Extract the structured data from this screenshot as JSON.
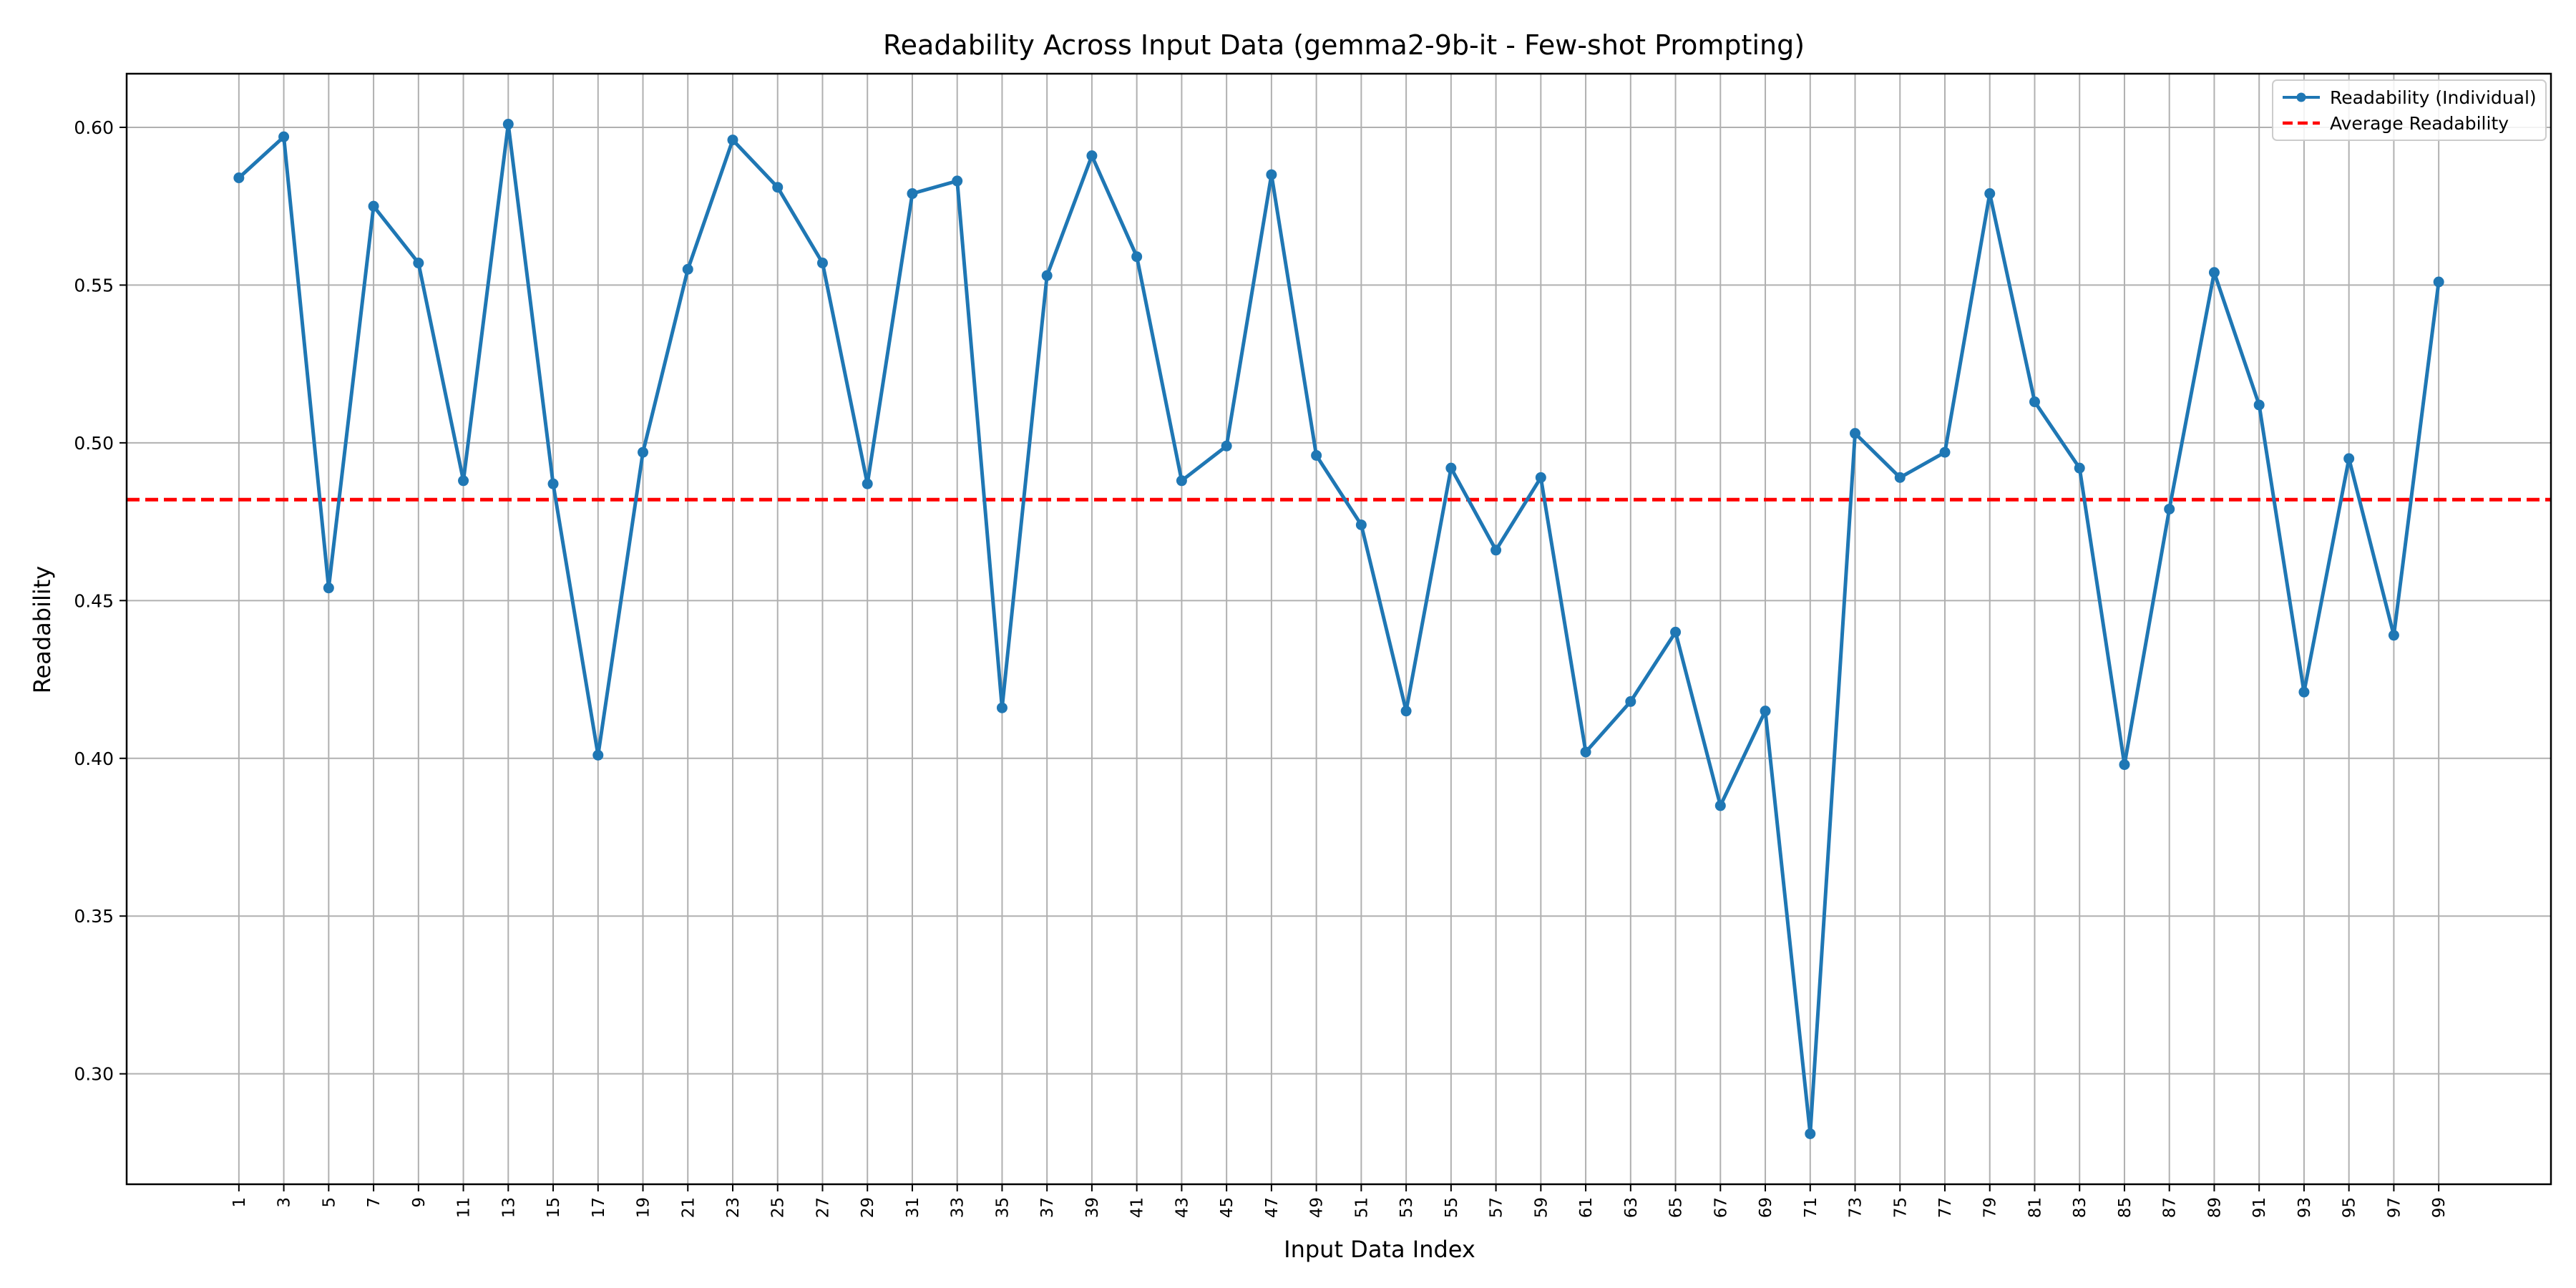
{
  "chart_data": {
    "type": "line",
    "title": "Readability Across Input Data (gemma2-9b-it - Few-shot Prompting)",
    "xlabel": "Input Data Index",
    "ylabel": "Readability",
    "x": [
      1,
      3,
      5,
      7,
      9,
      11,
      13,
      15,
      17,
      19,
      21,
      23,
      25,
      27,
      29,
      31,
      33,
      35,
      37,
      39,
      41,
      43,
      45,
      47,
      49,
      51,
      53,
      55,
      57,
      59,
      61,
      63,
      65,
      67,
      69,
      71,
      73,
      75,
      77,
      79,
      81,
      83,
      85,
      87,
      89,
      91,
      93,
      95,
      97,
      99
    ],
    "x_tick_labels": [
      "1",
      "3",
      "5",
      "7",
      "9",
      "11",
      "13",
      "15",
      "17",
      "19",
      "21",
      "23",
      "25",
      "27",
      "29",
      "31",
      "33",
      "35",
      "37",
      "39",
      "41",
      "43",
      "45",
      "47",
      "49",
      "51",
      "53",
      "55",
      "57",
      "59",
      "61",
      "63",
      "65",
      "67",
      "69",
      "71",
      "73",
      "75",
      "77",
      "79",
      "81",
      "83",
      "85",
      "87",
      "89",
      "91",
      "93",
      "95",
      "97",
      "99"
    ],
    "xlim": [
      -4,
      104
    ],
    "ylim": [
      0.265,
      0.617
    ],
    "y_ticks": [
      0.3,
      0.35,
      0.4,
      0.45,
      0.5,
      0.55,
      0.6
    ],
    "y_tick_labels": [
      "0.30",
      "0.35",
      "0.40",
      "0.45",
      "0.50",
      "0.55",
      "0.60"
    ],
    "series": [
      {
        "name": "Readability (Individual)",
        "color": "#1f77b4",
        "style": "solid-with-markers",
        "values": [
          0.584,
          0.597,
          0.454,
          0.575,
          0.557,
          0.488,
          0.601,
          0.487,
          0.401,
          0.497,
          0.555,
          0.596,
          0.581,
          0.557,
          0.487,
          0.579,
          0.583,
          0.416,
          0.553,
          0.591,
          0.559,
          0.488,
          0.499,
          0.585,
          0.496,
          0.474,
          0.415,
          0.492,
          0.466,
          0.489,
          0.402,
          0.418,
          0.44,
          0.385,
          0.415,
          0.281,
          0.503,
          0.489,
          0.497,
          0.579,
          0.513,
          0.492,
          0.398,
          0.479,
          0.554,
          0.512,
          0.421,
          0.495,
          0.439,
          0.551
        ]
      },
      {
        "name": "Average Readability",
        "color": "#ff0000",
        "style": "dashed",
        "value": 0.482
      }
    ],
    "grid": true,
    "legend_position": "top-right"
  }
}
